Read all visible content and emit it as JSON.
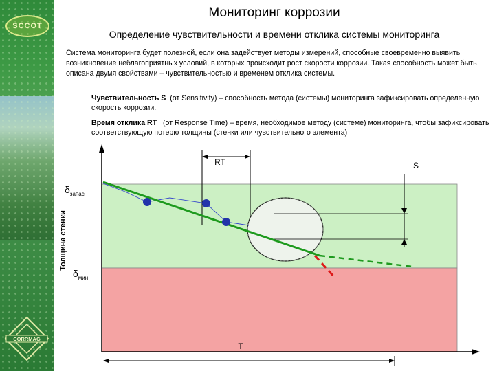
{
  "header": {
    "logo_text": "SCCOT",
    "title": "Мониторинг коррозии",
    "subtitle": "Определение чувствительности и времени отклика системы мониторинга"
  },
  "intro_text": "Система мониторинга будет полезной, если она задействует методы измерений, способные своевременно выявить возникновение неблагоприятных условий, в которых происходит рост скорости коррозии. Такая способность может быть описана двумя свойствами – чувствительностью и временем отклика системы.",
  "definitions": {
    "sensitivity": {
      "term": "Чувствительность S",
      "text": "(от Sensitivity) – способность метода (системы) мониторинга зафиксировать определенную скорость коррозии."
    },
    "response_time": {
      "term": "Время отклика RT",
      "text": "(от Response Time) – время, необходимое методу (системе) мониторинга, чтобы зафиксировать соответствующую потерю толщины (стенки или чувствительного элемента)"
    }
  },
  "diagram": {
    "y_axis_label": "Толщина стенки",
    "x_axis_label": "T",
    "label_rt": "RT",
    "label_s": "S",
    "delta_symbol": "δ",
    "delta_top_sub": "запас",
    "delta_bottom_sub": "мин",
    "colors": {
      "safe_zone": "#ccf0c4",
      "danger_zone": "#f4a3a3",
      "trend_line": "#1e9a1e",
      "trend_danger": "#dd1a1a",
      "points": "#2233aa",
      "measured_line": "#3344cc"
    }
  },
  "footer": {
    "logo_text": "CORRMAG"
  }
}
